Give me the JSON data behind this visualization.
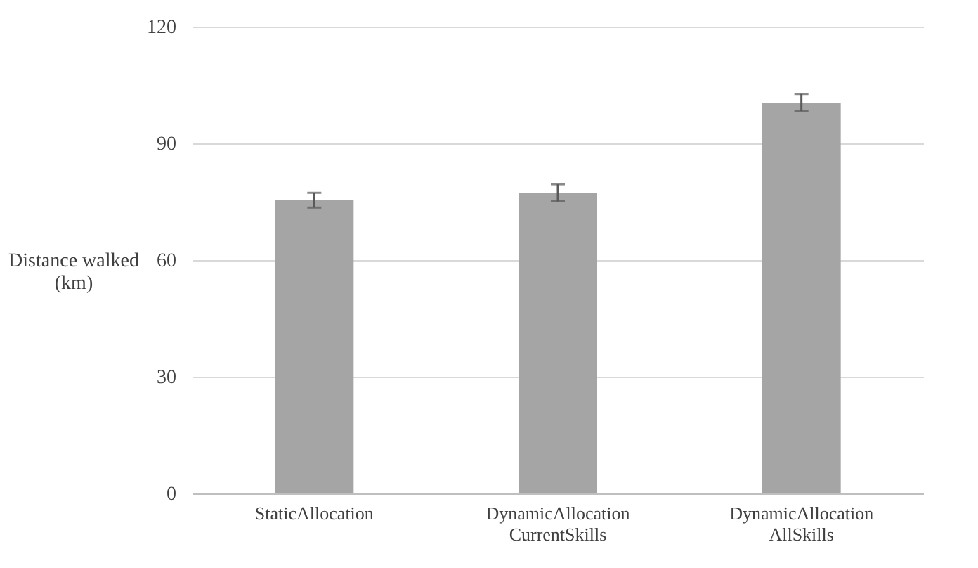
{
  "chart_data": {
    "type": "bar",
    "ylabel": "Distance walked\n(km)",
    "categories": [
      "StaticAllocation",
      "DynamicAllocation\nCurrentSkills",
      "DynamicAllocation\nAllSkills"
    ],
    "values": [
      75.4,
      77.3,
      100.5
    ],
    "errors": [
      1.9,
      2.2,
      2.2
    ],
    "color": "#a5a5a5",
    "ylim": [
      0,
      120
    ],
    "yticks": [
      0,
      30,
      60,
      90,
      120
    ],
    "grid": "y"
  }
}
